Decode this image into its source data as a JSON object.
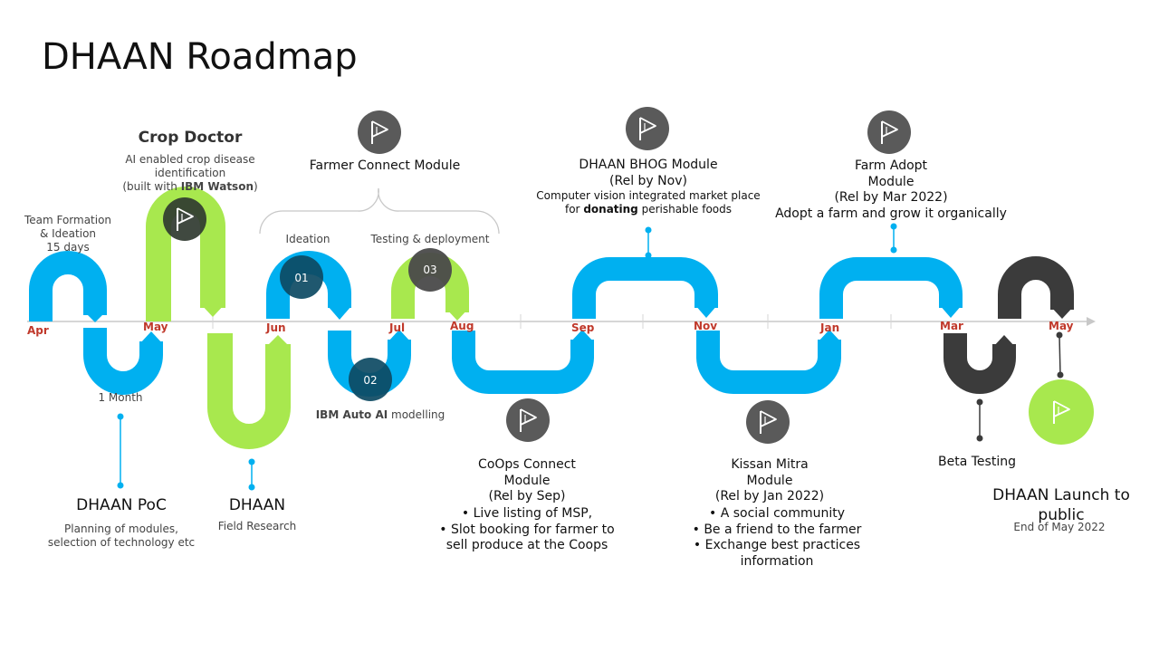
{
  "title": "DHAAN Roadmap",
  "months": [
    "Apr",
    "May",
    "Jun",
    "Jul",
    "Aug",
    "Sep",
    "Nov",
    "Jan",
    "Mar",
    "May"
  ],
  "colors": {
    "blue": "#00b0f0",
    "green": "#a8e84e",
    "dark": "#3b3b3b",
    "month": "#c0392b",
    "axis": "#c8c8c8"
  },
  "team_formation": {
    "line1": "Team Formation",
    "line2": "& Ideation",
    "line3": "15 days"
  },
  "crop_doctor": {
    "title": "Crop Doctor",
    "line1": "AI enabled  crop disease",
    "line2": "identification",
    "line3_pre": "(built with ",
    "line3_bold": "IBM Watson",
    "line3_post": ")"
  },
  "farmer_connect": {
    "title": "Farmer Connect Module",
    "ideation": "Ideation",
    "testing": "Testing & deployment",
    "step1": "01",
    "step2": "02",
    "step3": "03",
    "auto_ai": "IBM Auto AI",
    "auto_ai_suffix": " modelling"
  },
  "bhog": {
    "title": "DHAAN BHOG Module",
    "rel": "(Rel by Nov)",
    "line1": "Computer  vision integrated  market place",
    "line2_pre": "for ",
    "line2_bold": "donating",
    "line2_post": " perishable  foods"
  },
  "farm_adopt": {
    "line1": "Farm Adopt",
    "line2": "Module",
    "rel": "(Rel by Mar 2022)",
    "desc": "Adopt a farm and grow it organically"
  },
  "poc": {
    "duration": "1 Month",
    "title": "DHAAN PoC",
    "line1": "Planning  of modules,",
    "line2": "selection  of technology  etc"
  },
  "field": {
    "title": "DHAAN",
    "sub": "Field Research"
  },
  "coops": {
    "line1": "CoOps Connect",
    "line2": "Module",
    "rel": "(Rel by Sep)",
    "bullets": [
      "Live listing of MSP,",
      "Slot booking for farmer to"
    ],
    "tail": "sell produce at the Coops"
  },
  "kissan": {
    "line1": "Kissan Mitra",
    "line2": "Module",
    "rel": "(Rel by Jan 2022)",
    "bullets": [
      "A social community",
      "Be a friend to the farmer",
      "Exchange best practices"
    ],
    "tail": "information"
  },
  "beta": {
    "label": "Beta Testing"
  },
  "launch": {
    "line1": "DHAAN Launch to",
    "line2": "public",
    "sub": "End of May 2022"
  },
  "icons": [
    "flag-icon"
  ]
}
